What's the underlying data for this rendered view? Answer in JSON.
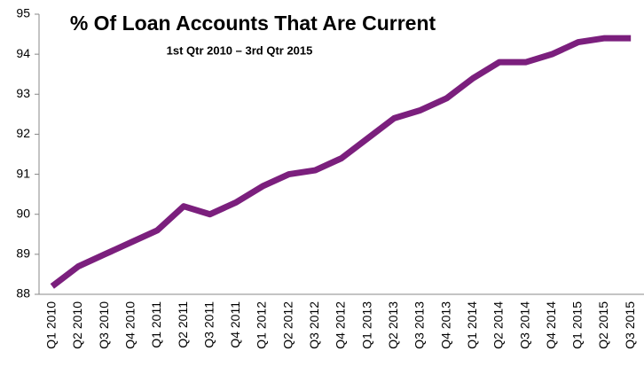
{
  "chart_data": {
    "type": "line",
    "title": "% Of Loan Accounts That Are Current",
    "subtitle": "1st Qtr 2010 – 3rd Qtr 2015",
    "categories": [
      "Q1 2010",
      "Q2 2010",
      "Q3 2010",
      "Q4 2010",
      "Q1 2011",
      "Q2 2011",
      "Q3 2011",
      "Q4 2011",
      "Q1 2012",
      "Q2 2012",
      "Q3 2012",
      "Q4 2012",
      "Q1 2013",
      "Q2 2013",
      "Q3 2013",
      "Q4 2013",
      "Q1 2014",
      "Q2 2014",
      "Q3 2014",
      "Q4 2014",
      "Q1 2015",
      "Q2 2015",
      "Q3 2015"
    ],
    "values": [
      88.2,
      88.7,
      89.0,
      89.3,
      89.6,
      90.2,
      90.0,
      90.3,
      90.7,
      91.0,
      91.1,
      91.4,
      91.9,
      92.4,
      92.6,
      92.9,
      93.4,
      93.8,
      93.8,
      94.0,
      94.3,
      94.4,
      94.4
    ],
    "color": "#7b1f7d",
    "ylim": [
      88,
      95
    ],
    "yticks": [
      88,
      89,
      90,
      91,
      92,
      93,
      94,
      95
    ],
    "grid": false
  }
}
